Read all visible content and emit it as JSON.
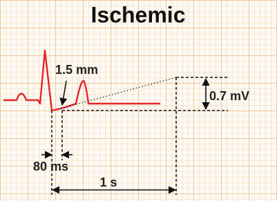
{
  "title": "Ischemic",
  "annotations": {
    "depression": "1.5 mm",
    "amplitude": "0.7 mV",
    "interval": "80 ms",
    "duration": "1 s"
  }
}
